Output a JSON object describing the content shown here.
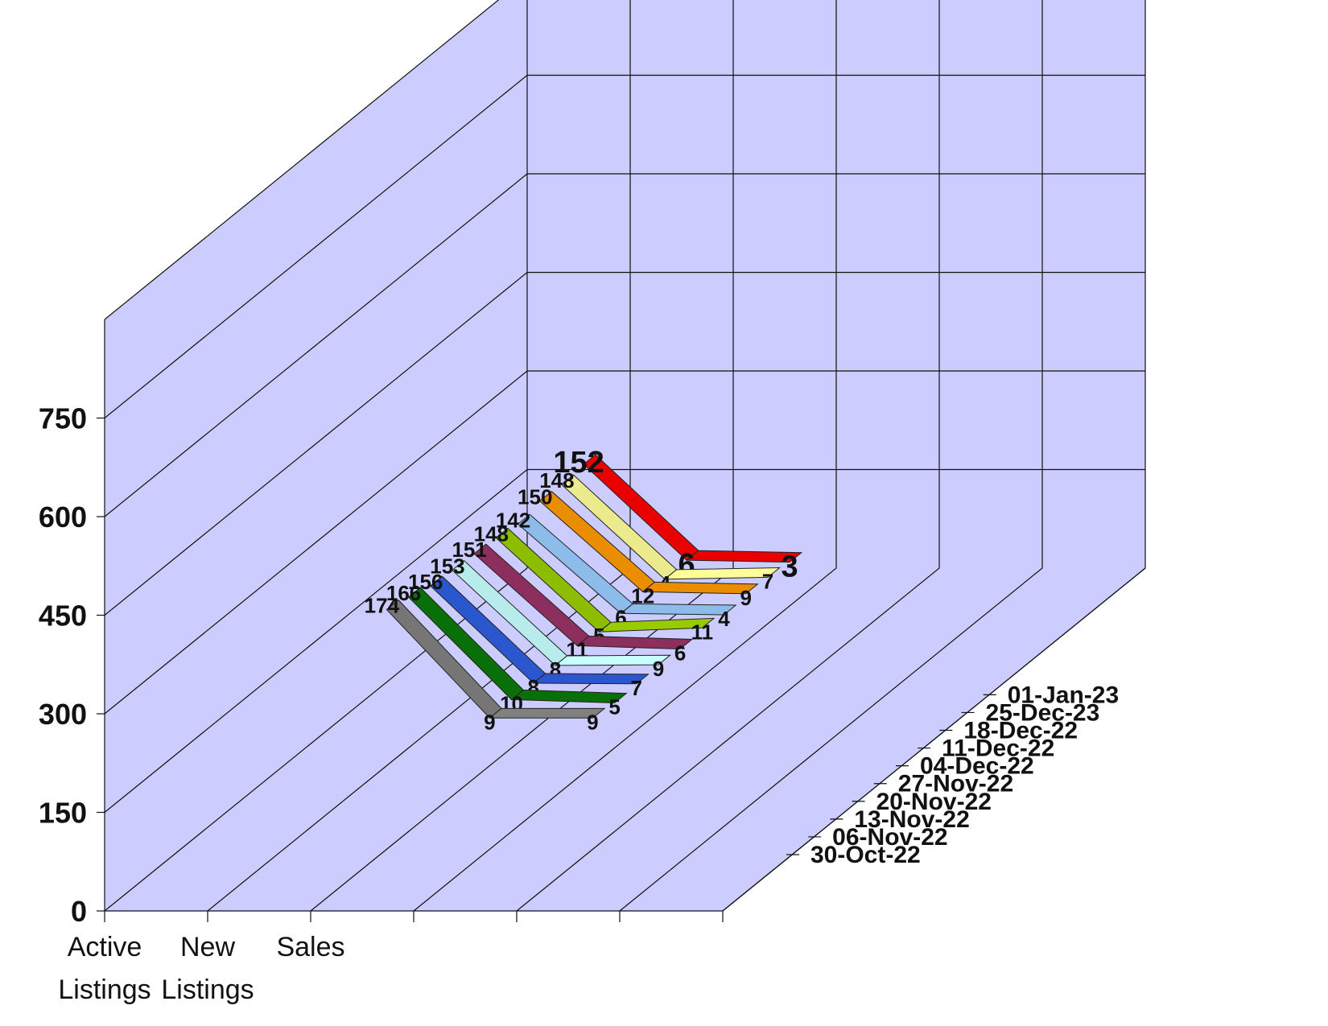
{
  "chart_data": {
    "type": "line",
    "style": "3d-ribbon",
    "categories": [
      [
        "Active",
        "Listings"
      ],
      [
        "New",
        "Listings"
      ],
      [
        "Sales"
      ]
    ],
    "y_ticks": [
      "0",
      "150",
      "300",
      "450",
      "600",
      "750"
    ],
    "ylim": [
      0,
      900
    ],
    "series": [
      {
        "name": "30-Oct-22",
        "values": [
          174,
          9,
          9
        ],
        "color": "#808080"
      },
      {
        "name": "06-Nov-22",
        "values": [
          166,
          10,
          5
        ],
        "color": "#0a7a0a"
      },
      {
        "name": "13-Nov-22",
        "values": [
          156,
          8,
          7
        ],
        "color": "#2f5fe0"
      },
      {
        "name": "20-Nov-22",
        "values": [
          153,
          8,
          9
        ],
        "color": "#c8ffff"
      },
      {
        "name": "27-Nov-22",
        "values": [
          151,
          11,
          6
        ],
        "color": "#993366"
      },
      {
        "name": "04-Dec-22",
        "values": [
          148,
          5,
          11
        ],
        "color": "#99cc00"
      },
      {
        "name": "11-Dec-22",
        "values": [
          142,
          6,
          4
        ],
        "color": "#99ccff"
      },
      {
        "name": "18-Dec-22",
        "values": [
          150,
          12,
          9
        ],
        "color": "#ff9900"
      },
      {
        "name": "25-Dec-23",
        "values": [
          148,
          4,
          7
        ],
        "color": "#ffff99"
      },
      {
        "name": "01-Jan-23",
        "values": [
          152,
          6,
          3
        ],
        "color": "#ff0000"
      }
    ],
    "wall_color": "#ccccff",
    "grid": true,
    "legend": "none"
  }
}
